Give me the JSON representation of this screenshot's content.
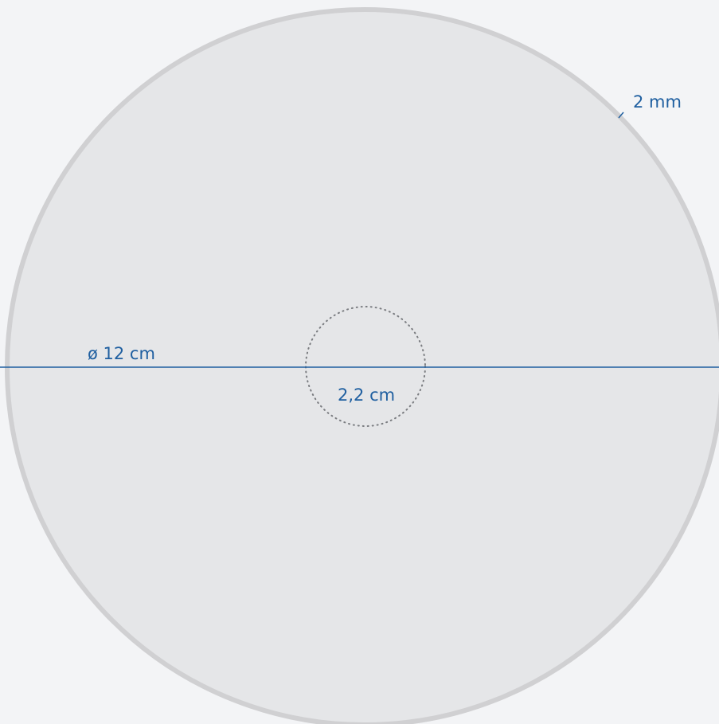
{
  "labels": {
    "diameter": "ø 12 cm",
    "hole": "2,2 cm",
    "rim": "2 mm"
  },
  "colors": {
    "background": "#f3f4f6",
    "disc_fill": "#e5e6e8",
    "disc_rim": "#d0d0d2",
    "dimension_line": "#1f5fa0",
    "hole_outline": "#7a7c80",
    "label_text": "#1f5fa0"
  }
}
